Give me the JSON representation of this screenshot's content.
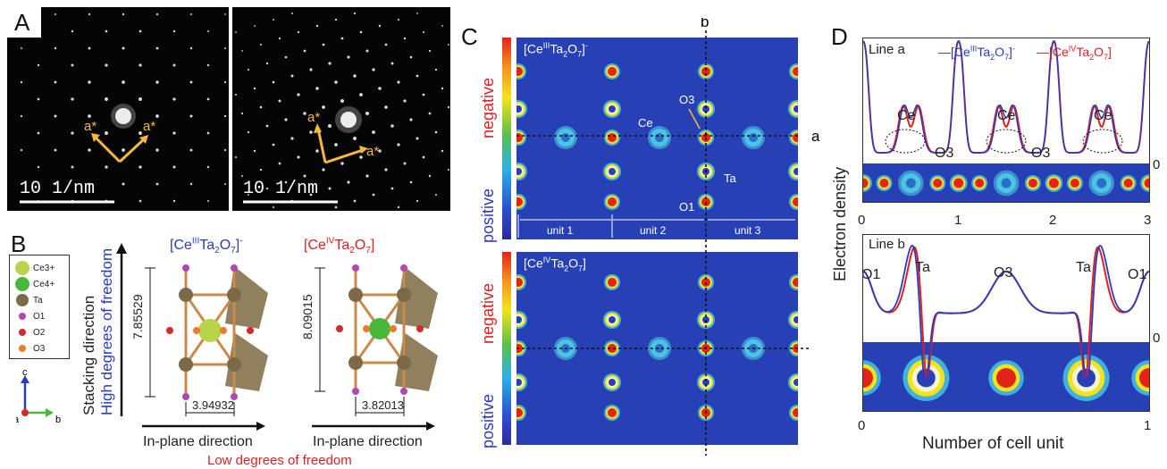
{
  "panels": {
    "A": "A",
    "B": "B",
    "C": "C",
    "D": "D"
  },
  "panel_a": {
    "scale_left": "10 1/nm",
    "scale_right": "10 1/nm",
    "astar": "a*"
  },
  "panel_b": {
    "legend": [
      "Ce3+",
      "Ce4+",
      "Ta",
      "O1",
      "O2",
      "O3"
    ],
    "legend_colors": [
      "#b9d44a",
      "#49b83a",
      "#7a6a48",
      "#b347b0",
      "#d42a2a",
      "#ef7a2d"
    ],
    "stacking": "Stacking direction",
    "high_freedom": "High degrees of freedom",
    "low_freedom": "Low degrees of freedom",
    "inplane": "In-plane direction",
    "left_title_pre": "[Ce",
    "left_title_sup": "III",
    "left_title_mid": "Ta",
    "left_title_sub1": "2",
    "left_title_o": "O",
    "left_title_sub2": "7",
    "left_title_post": "]",
    "left_charge": "-",
    "right_title_sup": "IV",
    "left_height": "7.85529",
    "left_width": "3.94932",
    "right_height": "8.09015",
    "right_width": "3.82013",
    "axis_c": "c",
    "axis_a": "a",
    "axis_b": "b"
  },
  "panel_c": {
    "negative": "negative",
    "positive": "positive",
    "line_b": "b",
    "line_a": "a",
    "o3": "O3",
    "ce": "Ce",
    "ta": "Ta",
    "o1": "O1",
    "units": [
      "unit 1",
      "unit 2",
      "unit 3"
    ]
  },
  "panel_d": {
    "line_a": "Line a",
    "line_b": "Line b",
    "ylabel": "Electron density",
    "xlabel": "Number of cell unit",
    "zero": "0",
    "ce": "Ce",
    "o3": "O3",
    "o1": "O1",
    "ta": "Ta",
    "xticks_top": [
      "0",
      "1",
      "2",
      "3"
    ],
    "xticks_bottom": [
      "0",
      "1"
    ],
    "series_colors": {
      "ce3": "#2a3bbf",
      "ce4": "#e02020"
    }
  }
}
